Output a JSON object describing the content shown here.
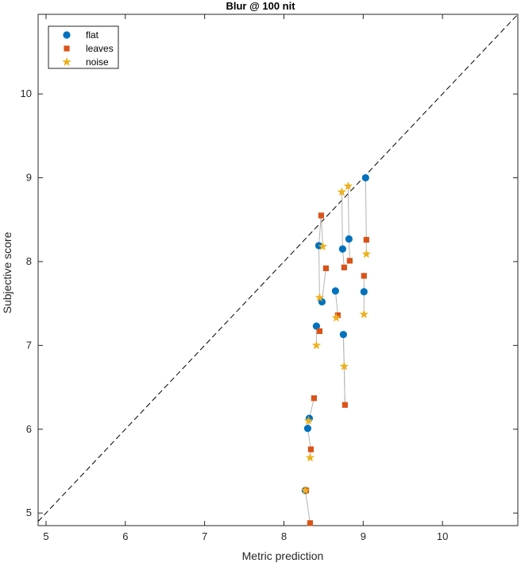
{
  "chart_data": {
    "type": "scatter",
    "title": "Blur @ 100 nit",
    "xlabel": "Metric prediction",
    "ylabel": "Subjective score",
    "xlim": [
      4.9,
      10.95
    ],
    "ylim": [
      4.85,
      10.95
    ],
    "xticks": [
      5,
      6,
      7,
      8,
      9,
      10
    ],
    "yticks": [
      5,
      6,
      7,
      8,
      9,
      10
    ],
    "grid": false,
    "legend_position": "top-left",
    "reference_line": "identity (dashed)",
    "colors": {
      "flat": "#0072BD",
      "leaves": "#D95319",
      "noise": "#EDB120",
      "connector": "#b4b4b4"
    },
    "series": [
      {
        "name": "flat",
        "marker": "circle",
        "points": [
          [
            8.27,
            5.27
          ],
          [
            8.3,
            6.01
          ],
          [
            8.32,
            6.13
          ],
          [
            8.41,
            7.23
          ],
          [
            8.44,
            8.19
          ],
          [
            8.48,
            7.52
          ],
          [
            8.65,
            7.65
          ],
          [
            8.74,
            8.15
          ],
          [
            8.75,
            7.13
          ],
          [
            8.82,
            8.27
          ],
          [
            9.01,
            7.64
          ],
          [
            9.03,
            9.0
          ]
        ]
      },
      {
        "name": "leaves",
        "marker": "square",
        "points": [
          [
            8.28,
            5.27
          ],
          [
            8.33,
            4.88
          ],
          [
            8.34,
            5.76
          ],
          [
            8.38,
            6.37
          ],
          [
            8.45,
            7.17
          ],
          [
            8.47,
            8.55
          ],
          [
            8.53,
            7.92
          ],
          [
            8.68,
            7.36
          ],
          [
            8.76,
            7.93
          ],
          [
            8.77,
            6.29
          ],
          [
            8.83,
            8.01
          ],
          [
            9.01,
            7.83
          ],
          [
            9.04,
            8.26
          ]
        ]
      },
      {
        "name": "noise",
        "marker": "star",
        "points": [
          [
            8.27,
            5.27
          ],
          [
            8.31,
            6.1
          ],
          [
            8.33,
            5.66
          ],
          [
            8.41,
            7.0
          ],
          [
            8.45,
            7.57
          ],
          [
            8.49,
            8.18
          ],
          [
            8.66,
            7.33
          ],
          [
            8.73,
            8.83
          ],
          [
            8.76,
            6.75
          ],
          [
            8.81,
            8.9
          ],
          [
            9.01,
            7.37
          ],
          [
            9.04,
            8.09
          ]
        ]
      }
    ],
    "connectors": [
      [
        [
          8.33,
          4.88
        ],
        [
          8.27,
          5.27
        ]
      ],
      [
        [
          8.34,
          5.76
        ],
        [
          8.33,
          5.66
        ]
      ],
      [
        [
          8.3,
          6.01
        ],
        [
          8.34,
          5.76
        ]
      ],
      [
        [
          8.3,
          6.01
        ],
        [
          8.32,
          6.13
        ]
      ],
      [
        [
          8.32,
          6.13
        ],
        [
          8.38,
          6.37
        ]
      ],
      [
        [
          8.41,
          7.0
        ],
        [
          8.41,
          7.23
        ]
      ],
      [
        [
          8.41,
          7.23
        ],
        [
          8.45,
          7.17
        ]
      ],
      [
        [
          8.45,
          7.57
        ],
        [
          8.44,
          8.19
        ]
      ],
      [
        [
          8.45,
          7.57
        ],
        [
          8.48,
          7.52
        ]
      ],
      [
        [
          8.48,
          7.52
        ],
        [
          8.53,
          7.92
        ]
      ],
      [
        [
          8.44,
          8.19
        ],
        [
          8.47,
          8.55
        ]
      ],
      [
        [
          8.47,
          8.55
        ],
        [
          8.49,
          8.18
        ]
      ],
      [
        [
          8.65,
          7.65
        ],
        [
          8.68,
          7.36
        ]
      ],
      [
        [
          8.68,
          7.36
        ],
        [
          8.66,
          7.33
        ]
      ],
      [
        [
          8.73,
          8.83
        ],
        [
          8.74,
          8.15
        ]
      ],
      [
        [
          8.74,
          8.15
        ],
        [
          8.76,
          7.93
        ]
      ],
      [
        [
          8.75,
          7.13
        ],
        [
          8.76,
          6.75
        ]
      ],
      [
        [
          8.76,
          6.75
        ],
        [
          8.77,
          6.29
        ]
      ],
      [
        [
          8.75,
          7.13
        ],
        [
          8.77,
          6.29
        ]
      ],
      [
        [
          8.81,
          8.9
        ],
        [
          8.82,
          8.27
        ]
      ],
      [
        [
          8.82,
          8.27
        ],
        [
          8.83,
          8.01
        ]
      ],
      [
        [
          9.03,
          9.0
        ],
        [
          9.04,
          8.26
        ]
      ],
      [
        [
          9.04,
          8.26
        ],
        [
          9.04,
          8.09
        ]
      ],
      [
        [
          9.01,
          7.64
        ],
        [
          9.01,
          7.83
        ]
      ],
      [
        [
          9.01,
          7.64
        ],
        [
          9.01,
          7.37
        ]
      ]
    ]
  }
}
